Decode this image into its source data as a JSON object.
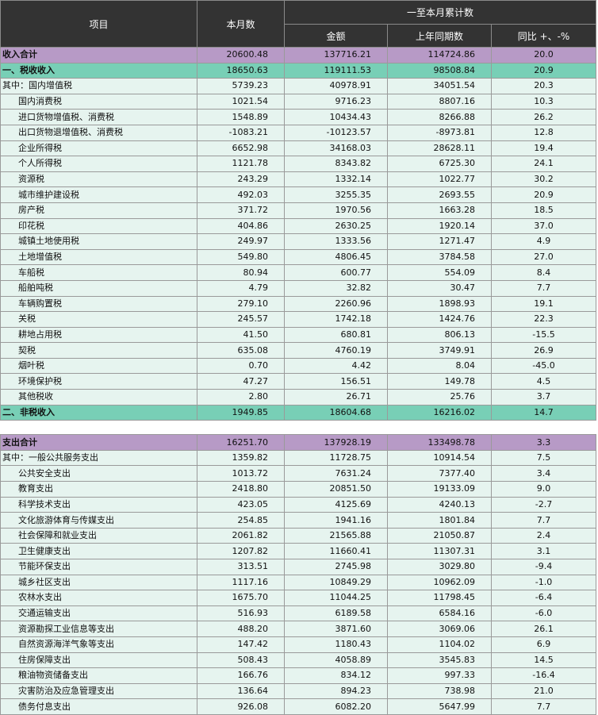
{
  "header": {
    "item": "项目",
    "month": "本月数",
    "cumulative": "一至本月累计数",
    "amount": "金额",
    "last_year": "上年同期数",
    "yoy": "同比 +、-%"
  },
  "revenue_rows": [
    {
      "label": "收入合计",
      "month": "20600.48",
      "amount": "137716.21",
      "last": "114724.86",
      "yoy": "20.0",
      "style": "total",
      "indent": false
    },
    {
      "label": "一、税收收入",
      "month": "18650.63",
      "amount": "119111.53",
      "last": "98508.84",
      "yoy": "20.9",
      "style": "sub",
      "indent": false
    },
    {
      "label": "其中：国内增值税",
      "month": "5739.23",
      "amount": "40978.91",
      "last": "34051.54",
      "yoy": "20.3",
      "style": "row",
      "indent": false
    },
    {
      "label": "国内消费税",
      "month": "1021.54",
      "amount": "9716.23",
      "last": "8807.16",
      "yoy": "10.3",
      "style": "row",
      "indent": true
    },
    {
      "label": "进口货物增值税、消费税",
      "month": "1548.89",
      "amount": "10434.43",
      "last": "8266.88",
      "yoy": "26.2",
      "style": "row",
      "indent": true
    },
    {
      "label": "出口货物退增值税、消费税",
      "month": "-1083.21",
      "amount": "-10123.57",
      "last": "-8973.81",
      "yoy": "12.8",
      "style": "row",
      "indent": true
    },
    {
      "label": "企业所得税",
      "month": "6652.98",
      "amount": "34168.03",
      "last": "28628.11",
      "yoy": "19.4",
      "style": "row",
      "indent": true
    },
    {
      "label": "个人所得税",
      "month": "1121.78",
      "amount": "8343.82",
      "last": "6725.30",
      "yoy": "24.1",
      "style": "row",
      "indent": true
    },
    {
      "label": "资源税",
      "month": "243.29",
      "amount": "1332.14",
      "last": "1022.77",
      "yoy": "30.2",
      "style": "row",
      "indent": true
    },
    {
      "label": "城市维护建设税",
      "month": "492.03",
      "amount": "3255.35",
      "last": "2693.55",
      "yoy": "20.9",
      "style": "row",
      "indent": true
    },
    {
      "label": "房产税",
      "month": "371.72",
      "amount": "1970.56",
      "last": "1663.28",
      "yoy": "18.5",
      "style": "row",
      "indent": true
    },
    {
      "label": "印花税",
      "month": "404.86",
      "amount": "2630.25",
      "last": "1920.14",
      "yoy": "37.0",
      "style": "row",
      "indent": true
    },
    {
      "label": "城镇土地使用税",
      "month": "249.97",
      "amount": "1333.56",
      "last": "1271.47",
      "yoy": "4.9",
      "style": "row",
      "indent": true
    },
    {
      "label": "土地增值税",
      "month": "549.80",
      "amount": "4806.45",
      "last": "3784.58",
      "yoy": "27.0",
      "style": "row",
      "indent": true
    },
    {
      "label": "车船税",
      "month": "80.94",
      "amount": "600.77",
      "last": "554.09",
      "yoy": "8.4",
      "style": "row",
      "indent": true
    },
    {
      "label": "船舶吨税",
      "month": "4.79",
      "amount": "32.82",
      "last": "30.47",
      "yoy": "7.7",
      "style": "row",
      "indent": true
    },
    {
      "label": "车辆购置税",
      "month": "279.10",
      "amount": "2260.96",
      "last": "1898.93",
      "yoy": "19.1",
      "style": "row",
      "indent": true
    },
    {
      "label": "关税",
      "month": "245.57",
      "amount": "1742.18",
      "last": "1424.76",
      "yoy": "22.3",
      "style": "row",
      "indent": true
    },
    {
      "label": "耕地占用税",
      "month": "41.50",
      "amount": "680.81",
      "last": "806.13",
      "yoy": "-15.5",
      "style": "row",
      "indent": true
    },
    {
      "label": "契税",
      "month": "635.08",
      "amount": "4760.19",
      "last": "3749.91",
      "yoy": "26.9",
      "style": "row",
      "indent": true
    },
    {
      "label": "烟叶税",
      "month": "0.70",
      "amount": "4.42",
      "last": "8.04",
      "yoy": "-45.0",
      "style": "row",
      "indent": true
    },
    {
      "label": "环境保护税",
      "month": "47.27",
      "amount": "156.51",
      "last": "149.78",
      "yoy": "4.5",
      "style": "row",
      "indent": true
    },
    {
      "label": "其他税收",
      "month": "2.80",
      "amount": "26.71",
      "last": "25.76",
      "yoy": "3.7",
      "style": "row",
      "indent": true
    },
    {
      "label": "二、非税收入",
      "month": "1949.85",
      "amount": "18604.68",
      "last": "16216.02",
      "yoy": "14.7",
      "style": "sub",
      "indent": false
    }
  ],
  "expense_rows": [
    {
      "label": "支出合计",
      "month": "16251.70",
      "amount": "137928.19",
      "last": "133498.78",
      "yoy": "3.3",
      "style": "total",
      "indent": false
    },
    {
      "label": "其中：一般公共服务支出",
      "month": "1359.82",
      "amount": "11728.75",
      "last": "10914.54",
      "yoy": "7.5",
      "style": "row",
      "indent": false
    },
    {
      "label": "公共安全支出",
      "month": "1013.72",
      "amount": "7631.24",
      "last": "7377.40",
      "yoy": "3.4",
      "style": "row",
      "indent": true
    },
    {
      "label": "教育支出",
      "month": "2418.80",
      "amount": "20851.50",
      "last": "19133.09",
      "yoy": "9.0",
      "style": "row",
      "indent": true
    },
    {
      "label": "科学技术支出",
      "month": "423.05",
      "amount": "4125.69",
      "last": "4240.13",
      "yoy": "-2.7",
      "style": "row",
      "indent": true
    },
    {
      "label": "文化旅游体育与传媒支出",
      "month": "254.85",
      "amount": "1941.16",
      "last": "1801.84",
      "yoy": "7.7",
      "style": "row",
      "indent": true
    },
    {
      "label": "社会保障和就业支出",
      "month": "2061.82",
      "amount": "21565.88",
      "last": "21050.87",
      "yoy": "2.4",
      "style": "row",
      "indent": true
    },
    {
      "label": "卫生健康支出",
      "month": "1207.82",
      "amount": "11660.41",
      "last": "11307.31",
      "yoy": "3.1",
      "style": "row",
      "indent": true
    },
    {
      "label": "节能环保支出",
      "month": "313.51",
      "amount": "2745.98",
      "last": "3029.80",
      "yoy": "-9.4",
      "style": "row",
      "indent": true
    },
    {
      "label": "城乡社区支出",
      "month": "1117.16",
      "amount": "10849.29",
      "last": "10962.09",
      "yoy": "-1.0",
      "style": "row",
      "indent": true
    },
    {
      "label": "农林水支出",
      "month": "1675.70",
      "amount": "11044.25",
      "last": "11798.45",
      "yoy": "-6.4",
      "style": "row",
      "indent": true
    },
    {
      "label": "交通运输支出",
      "month": "516.93",
      "amount": "6189.58",
      "last": "6584.16",
      "yoy": "-6.0",
      "style": "row",
      "indent": true
    },
    {
      "label": "资源勘探工业信息等支出",
      "month": "488.20",
      "amount": "3871.60",
      "last": "3069.06",
      "yoy": "26.1",
      "style": "row",
      "indent": true
    },
    {
      "label": "自然资源海洋气象等支出",
      "month": "147.42",
      "amount": "1180.43",
      "last": "1104.02",
      "yoy": "6.9",
      "style": "row",
      "indent": true
    },
    {
      "label": "住房保障支出",
      "month": "508.43",
      "amount": "4058.89",
      "last": "3545.83",
      "yoy": "14.5",
      "style": "row",
      "indent": true
    },
    {
      "label": "粮油物资储备支出",
      "month": "166.76",
      "amount": "834.12",
      "last": "997.33",
      "yoy": "-16.4",
      "style": "row",
      "indent": true
    },
    {
      "label": "灾害防治及应急管理支出",
      "month": "136.64",
      "amount": "894.23",
      "last": "738.98",
      "yoy": "21.0",
      "style": "row",
      "indent": true
    },
    {
      "label": "债务付息支出",
      "month": "926.08",
      "amount": "6082.20",
      "last": "5647.99",
      "yoy": "7.7",
      "style": "row",
      "indent": true
    }
  ]
}
